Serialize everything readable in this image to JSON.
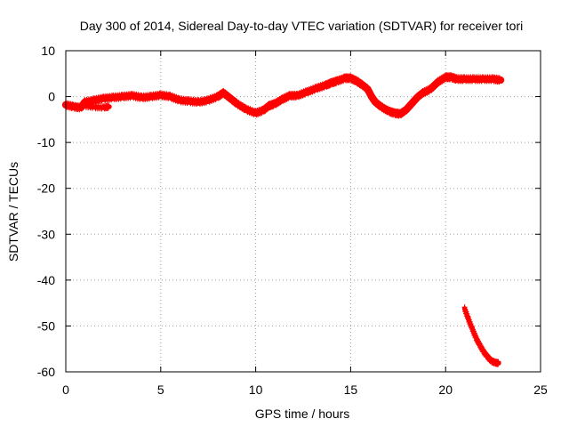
{
  "chart_data": {
    "type": "scatter",
    "title": "Day 300 of 2014, Sidereal Day-to-day VTEC variation (SDTVAR) for receiver tori",
    "xlabel": "GPS time / hours",
    "ylabel": "SDTVAR / TECUs",
    "xlim": [
      0,
      25
    ],
    "ylim": [
      -60,
      10
    ],
    "xticks": [
      "0",
      "5",
      "10",
      "15",
      "20",
      "25"
    ],
    "yticks": [
      "10",
      "0",
      "-10",
      "-20",
      "-30",
      "-40",
      "-50",
      "-60"
    ],
    "grid": true,
    "series_color": "#ff0000",
    "series": [
      {
        "name": "main",
        "band_width": 1.6,
        "points": [
          [
            0.0,
            -1.8
          ],
          [
            0.4,
            -2.2
          ],
          [
            0.8,
            -2.4
          ],
          [
            1.0,
            -1.2
          ],
          [
            1.5,
            -0.8
          ],
          [
            2.0,
            -0.4
          ],
          [
            2.5,
            -0.2
          ],
          [
            3.0,
            0.0
          ],
          [
            3.5,
            0.2
          ],
          [
            4.0,
            -0.2
          ],
          [
            4.5,
            0.0
          ],
          [
            5.0,
            0.3
          ],
          [
            5.5,
            0.0
          ],
          [
            6.0,
            -0.8
          ],
          [
            6.5,
            -1.0
          ],
          [
            7.0,
            -1.2
          ],
          [
            7.5,
            -0.8
          ],
          [
            8.0,
            0.0
          ],
          [
            8.3,
            0.8
          ],
          [
            8.7,
            -0.5
          ],
          [
            9.0,
            -1.5
          ],
          [
            9.5,
            -2.8
          ],
          [
            10.0,
            -3.6
          ],
          [
            10.4,
            -3.0
          ],
          [
            10.7,
            -2.0
          ],
          [
            11.0,
            -1.6
          ],
          [
            11.4,
            -0.6
          ],
          [
            11.8,
            0.2
          ],
          [
            12.2,
            0.2
          ],
          [
            12.7,
            1.0
          ],
          [
            13.2,
            1.8
          ],
          [
            13.7,
            2.5
          ],
          [
            14.0,
            3.0
          ],
          [
            14.3,
            3.4
          ],
          [
            14.7,
            4.0
          ],
          [
            15.0,
            4.0
          ],
          [
            15.3,
            3.4
          ],
          [
            15.6,
            2.6
          ],
          [
            15.9,
            1.6
          ],
          [
            16.1,
            0.0
          ],
          [
            16.3,
            -1.2
          ],
          [
            16.6,
            -2.2
          ],
          [
            17.0,
            -3.2
          ],
          [
            17.3,
            -3.6
          ],
          [
            17.6,
            -3.8
          ],
          [
            17.9,
            -3.0
          ],
          [
            18.2,
            -1.6
          ],
          [
            18.5,
            -0.2
          ],
          [
            18.8,
            0.8
          ],
          [
            19.2,
            1.6
          ],
          [
            19.6,
            3.2
          ],
          [
            20.0,
            4.2
          ],
          [
            20.3,
            4.2
          ],
          [
            20.6,
            3.8
          ],
          [
            21.0,
            3.8
          ],
          [
            21.5,
            3.8
          ],
          [
            22.0,
            3.8
          ],
          [
            22.5,
            3.8
          ],
          [
            22.9,
            3.6
          ]
        ]
      },
      {
        "name": "main-lower-streak",
        "band_width": 1.0,
        "points": [
          [
            1.0,
            -2.0
          ],
          [
            1.5,
            -2.3
          ],
          [
            2.0,
            -2.4
          ],
          [
            2.3,
            -2.2
          ]
        ]
      },
      {
        "name": "outlier-tail",
        "band_width": 1.0,
        "points": [
          [
            21.0,
            -46.2
          ],
          [
            21.2,
            -48.5
          ],
          [
            21.4,
            -50.6
          ],
          [
            21.6,
            -52.6
          ],
          [
            21.8,
            -54.2
          ],
          [
            22.0,
            -55.6
          ],
          [
            22.2,
            -56.7
          ],
          [
            22.4,
            -57.6
          ],
          [
            22.6,
            -58.0
          ],
          [
            22.8,
            -58.1
          ]
        ]
      }
    ]
  }
}
